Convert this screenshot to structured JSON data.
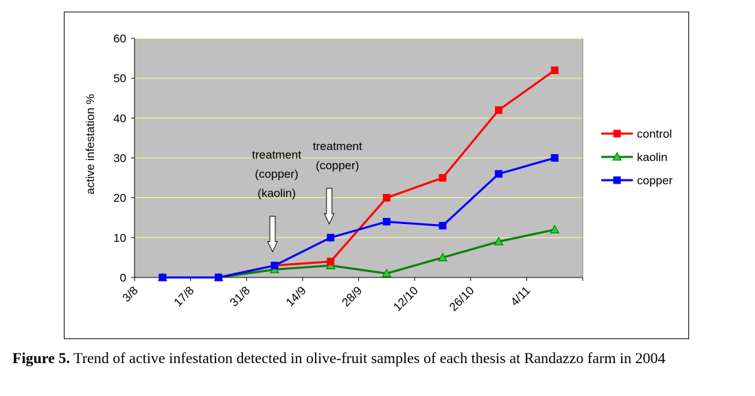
{
  "chart_data": {
    "type": "line",
    "ylabel": "active infestation %",
    "ylim": [
      0,
      60
    ],
    "yticks": [
      "0",
      "10",
      "20",
      "30",
      "40",
      "50",
      "60"
    ],
    "xticks": [
      "3/8",
      "17/8",
      "31/8",
      "14/9",
      "28/9",
      "12/10",
      "26/10",
      "4/11"
    ],
    "grid": true,
    "legend_position": "right",
    "plot_background": "#c0c0c0",
    "gridline_color": "#ffff99",
    "series": [
      {
        "name": "control",
        "color": "#ff0000",
        "marker": "square",
        "values": [
          0,
          0,
          3,
          4,
          20,
          25,
          42,
          52
        ]
      },
      {
        "name": "kaolin",
        "color": "#008000",
        "marker": "triangle",
        "values": [
          0,
          0,
          2,
          3,
          1,
          5,
          9,
          12
        ]
      },
      {
        "name": "copper",
        "color": "#0000ff",
        "marker": "square",
        "values": [
          0,
          0,
          3,
          10,
          14,
          13,
          26,
          30
        ]
      }
    ],
    "annotations": [
      {
        "lines": [
          "treatment",
          "(copper)",
          "(kaolin)"
        ],
        "point_index": 2
      },
      {
        "lines": [
          "treatment",
          "(copper)"
        ],
        "point_index": 3
      }
    ]
  },
  "caption": {
    "label": "Figure 5.",
    "text": " Trend of active infestation detected in olive-fruit samples of each thesis at Randazzo farm in 2004"
  }
}
